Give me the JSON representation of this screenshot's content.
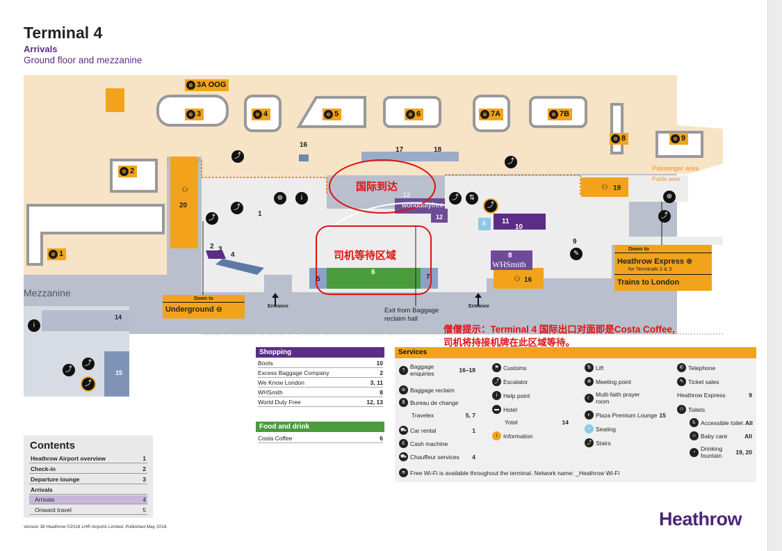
{
  "header": {
    "title": "Terminal 4",
    "subtitle": "Arrivals",
    "floor": "Ground floor and mezzanine"
  },
  "colors": {
    "accent_orange": "#f2a31b",
    "brand_purple": "#5b2d86",
    "green": "#4a9b3c",
    "annotation_red": "#e01010"
  },
  "map": {
    "baggage_belts": [
      {
        "label": "3A OOG"
      },
      {
        "label": "3"
      },
      {
        "label": "4"
      },
      {
        "label": "5"
      },
      {
        "label": "6"
      },
      {
        "label": "7A"
      },
      {
        "label": "7B"
      },
      {
        "label": "8"
      },
      {
        "label": "9"
      },
      {
        "label": "2"
      },
      {
        "label": "1"
      }
    ],
    "numbers": [
      "16",
      "17",
      "18",
      "13",
      "12",
      "11",
      "10",
      "20",
      "1",
      "2",
      "3",
      "4",
      "5",
      "6",
      "7",
      "8",
      "9",
      "19",
      "16"
    ],
    "passenger_area": "Passenger area",
    "public_area": "Public area",
    "entrance_left": "Entrance",
    "entrance_right": "Entrance",
    "exit_label_1": "Exit from Baggage",
    "exit_label_2": "reclaim hall",
    "world_duty_free": "worlddutyfree",
    "whsmith": "WHSmith",
    "mezzanine": "Mezzanine",
    "mezz_14": "14",
    "mezz_15": "15"
  },
  "underground": {
    "down_to": "Down to",
    "label": "Underground ⊖"
  },
  "heathrow_express": {
    "down_to": "Down to",
    "title": "Heathrow Express ⊗",
    "sub": "for Terminals 2 & 3",
    "trains": "Trains to London"
  },
  "annotations": {
    "intl_arrivals": "国际到达",
    "driver_wait": "司机等待区域",
    "tip_line1": "僧僧提示：Terminal 4 国际出口对面即是Costa Coffee,",
    "tip_line2": "司机将持接机牌在此区域等待。"
  },
  "shopping": {
    "title": "Shopping",
    "rows": [
      {
        "name": "Boots",
        "val": "10"
      },
      {
        "name": "Excess Baggage Company",
        "val": "2"
      },
      {
        "name": "We Know London",
        "val": "3, 11"
      },
      {
        "name": "WHSmith",
        "val": "8"
      },
      {
        "name": "World Duty Free",
        "val": "12, 13"
      }
    ]
  },
  "food": {
    "title": "Food and drink",
    "rows": [
      {
        "name": "Costa Coffee",
        "val": "6"
      }
    ]
  },
  "services": {
    "title": "Services",
    "col1": [
      {
        "name": "Baggage enquiries",
        "val": "16–18"
      },
      {
        "name": "Baggage reclaim",
        "val": ""
      },
      {
        "name": "Bureau de change",
        "val": ""
      },
      {
        "name": "Travelex",
        "val": "5, 7"
      },
      {
        "name": "Car rental",
        "val": "1"
      },
      {
        "name": "Cash machine",
        "val": ""
      },
      {
        "name": "Chauffeur services",
        "val": "4"
      }
    ],
    "col2": [
      {
        "name": "Customs",
        "val": ""
      },
      {
        "name": "Escalator",
        "val": ""
      },
      {
        "name": "Help point",
        "val": ""
      },
      {
        "name": "Hotel",
        "val": ""
      },
      {
        "name": "Yotel",
        "val": "14"
      },
      {
        "name": "Information",
        "val": ""
      }
    ],
    "col3": [
      {
        "name": "Lift",
        "val": ""
      },
      {
        "name": "Meeting point",
        "val": ""
      },
      {
        "name": "Multi-faith prayer room",
        "val": ""
      },
      {
        "name": "Plaza Premium Lounge",
        "val": "15"
      },
      {
        "name": "Seating",
        "val": ""
      },
      {
        "name": "Stairs",
        "val": ""
      }
    ],
    "col4": [
      {
        "name": "Telephone",
        "val": ""
      },
      {
        "name": "Ticket sales",
        "val": ""
      },
      {
        "name": "Heathrow Express",
        "val": "9"
      },
      {
        "name": "Toilets",
        "val": ""
      },
      {
        "name": "Accessible toilet",
        "val": "All"
      },
      {
        "name": "Baby care",
        "val": "All"
      },
      {
        "name": "Drinking fountain",
        "val": "19, 20"
      }
    ],
    "wifi": "Free Wi-Fi is available throughout the terminal. Network name: _Heathrow Wi-Fi"
  },
  "contents": {
    "title": "Contents",
    "rows": [
      {
        "name": "Heathrow Airport overview",
        "val": "1"
      },
      {
        "name": "Check-in",
        "val": "2"
      },
      {
        "name": "Departure lounge",
        "val": "3"
      },
      {
        "name": "Arrivals",
        "val": ""
      },
      {
        "name": "Arrivals",
        "val": "4"
      },
      {
        "name": "Onward travel",
        "val": "5"
      }
    ]
  },
  "footer": "Version 38 Heathrow ©2018 LHR Airports Limited. Published May 2018.",
  "logo": "Heathrow"
}
